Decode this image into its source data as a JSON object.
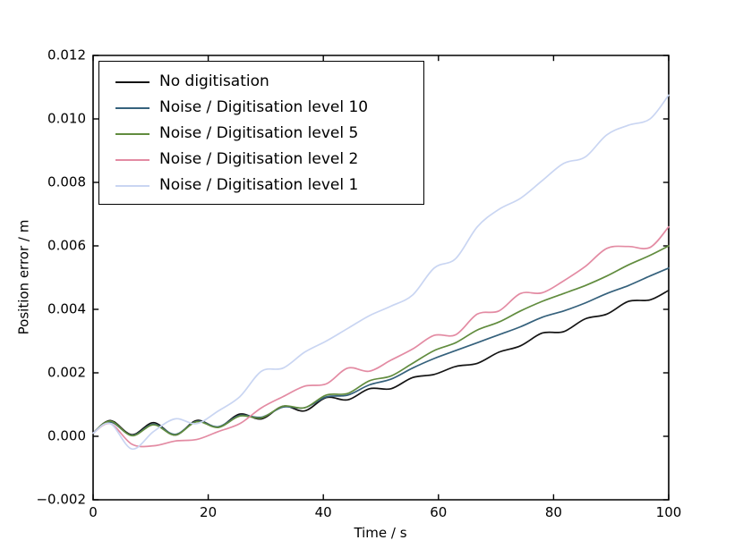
{
  "figure": {
    "background": "#ffffff",
    "axis_color": "#000000",
    "text_color": "#000000"
  },
  "chart_data": {
    "type": "line",
    "title": "",
    "xlabel": "Time / s",
    "ylabel": "Position error / m",
    "xlim": [
      0,
      100
    ],
    "ylim": [
      -0.002,
      0.012
    ],
    "xticks": [
      0,
      20,
      40,
      60,
      80,
      100
    ],
    "xtick_labels": [
      "0",
      "20",
      "40",
      "60",
      "80",
      "100"
    ],
    "yticks": [
      -0.002,
      0.0,
      0.002,
      0.004,
      0.006,
      0.008,
      0.01,
      0.012
    ],
    "ytick_labels": [
      "−0.002",
      "0.000",
      "0.002",
      "0.004",
      "0.006",
      "0.008",
      "0.010",
      "0.012"
    ],
    "grid": false,
    "legend_position": "upper left",
    "x": [
      0,
      3,
      6.75,
      10.5,
      14.25,
      18,
      21.75,
      25.5,
      29.25,
      33,
      36.75,
      40.5,
      44.25,
      48,
      51.75,
      55.5,
      59.25,
      63,
      66.75,
      70.5,
      74.25,
      78,
      81.75,
      85.5,
      89.25,
      93,
      96.75,
      100
    ],
    "series": [
      {
        "name": "No digitisation",
        "color": "#141414",
        "values": [
          0.0001,
          0.0005,
          5e-05,
          0.00043,
          4e-05,
          0.0005,
          0.00029,
          0.0007,
          0.00055,
          0.00095,
          0.0008,
          0.00122,
          0.00115,
          0.0015,
          0.0015,
          0.00185,
          0.00195,
          0.0022,
          0.0023,
          0.00265,
          0.00285,
          0.00325,
          0.0033,
          0.0037,
          0.00385,
          0.00425,
          0.0043,
          0.0046
        ]
      },
      {
        "name": "Noise / Digitisation level 10",
        "color": "#35617c",
        "values": [
          0.0001,
          0.00045,
          3e-05,
          0.00038,
          6e-05,
          0.00047,
          0.0003,
          0.00066,
          0.0006,
          0.00092,
          0.0009,
          0.00124,
          0.0013,
          0.00162,
          0.0018,
          0.00215,
          0.00245,
          0.0027,
          0.00295,
          0.0032,
          0.00345,
          0.00375,
          0.00395,
          0.0042,
          0.0045,
          0.00475,
          0.00505,
          0.0053
        ]
      },
      {
        "name": "Noise / Digitisation level 5",
        "color": "#618c3e",
        "values": [
          0.0001,
          0.00048,
          2e-05,
          0.00036,
          4e-05,
          0.00046,
          0.00028,
          0.00064,
          0.00058,
          0.00095,
          0.0009,
          0.0013,
          0.00135,
          0.00175,
          0.0019,
          0.0023,
          0.0027,
          0.00295,
          0.00335,
          0.0036,
          0.00395,
          0.00425,
          0.0045,
          0.00475,
          0.00505,
          0.0054,
          0.0057,
          0.006
        ]
      },
      {
        "name": "Noise / Digitisation level 2",
        "color": "#e38ba3",
        "values": [
          0.0001,
          0.0004,
          -0.00025,
          -0.0003,
          -0.00015,
          -0.0001,
          0.00015,
          0.0004,
          0.0009,
          0.00125,
          0.00158,
          0.00165,
          0.00215,
          0.00205,
          0.0024,
          0.00275,
          0.00318,
          0.0032,
          0.00385,
          0.00395,
          0.0045,
          0.00452,
          0.0049,
          0.00535,
          0.00592,
          0.00598,
          0.00595,
          0.0066
        ]
      },
      {
        "name": "Noise / Digitisation level 1",
        "color": "#c9d5f2",
        "values": [
          0.0001,
          0.0004,
          -0.0004,
          0.00015,
          0.00055,
          0.0004,
          0.0008,
          0.00125,
          0.00205,
          0.00215,
          0.00265,
          0.003,
          0.0034,
          0.0038,
          0.0041,
          0.00445,
          0.0053,
          0.0056,
          0.0066,
          0.00715,
          0.0075,
          0.00805,
          0.0086,
          0.0088,
          0.0095,
          0.0098,
          0.01,
          0.01075
        ]
      }
    ]
  }
}
